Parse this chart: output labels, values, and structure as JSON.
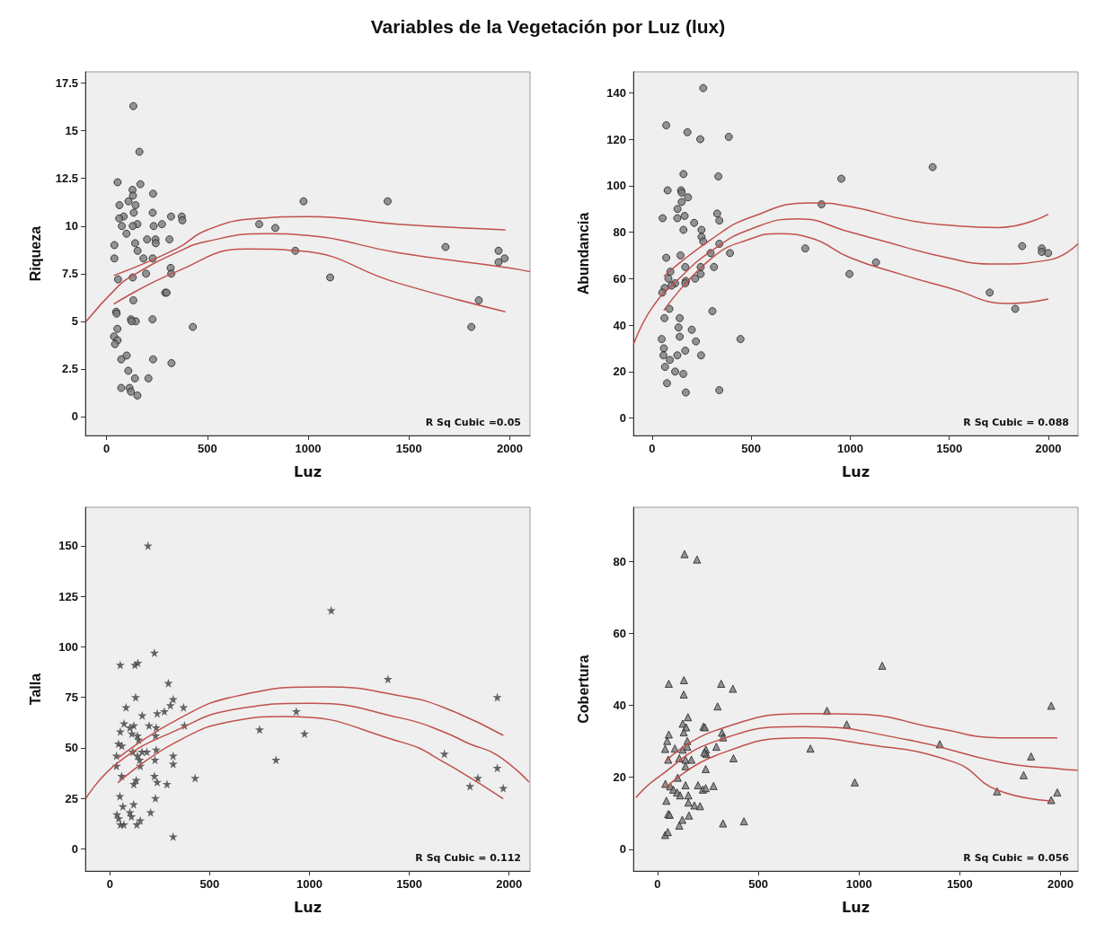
{
  "chart_data": [
    {
      "type": "scatter",
      "title": "Variables de la Vegetación por Luz (lux)",
      "xlabel": "Luz",
      "ylabel": "Riqueza",
      "marker": "circle",
      "grid": false,
      "xlim": [
        -105,
        2100
      ],
      "xticks": [
        0,
        500,
        1000,
        1500,
        2000
      ],
      "ylim": [
        -1,
        18.1
      ],
      "yticks": [
        0,
        2.5,
        5,
        7.5,
        10,
        12.5,
        15,
        17.5
      ],
      "annotations": [
        "R Sq Cubic =0.05"
      ],
      "series": [
        {
          "color": "#7a7a7a",
          "x": [
            133,
            163,
            55,
            168,
            129,
            231,
            109,
            131,
            64,
            144,
            135,
            229,
            85,
            63,
            320,
            373,
            376,
            153,
            130,
            76,
            234,
            275,
            99,
            201,
            243,
            312,
            244,
            142,
            39,
            154,
            39,
            183,
            229,
            757,
            837,
            977,
            1394,
            936,
            1109,
            318,
            321,
            196,
            130,
            57,
            291,
            298,
            133,
            48,
            50,
            121,
            145,
            124,
            228,
            428,
            54,
            37,
            55,
            42,
            100,
            73,
            231,
            322,
            108,
            141,
            208,
            73,
            114,
            121,
            153,
            1681,
            1944,
            1944,
            1974,
            1846,
            1809
          ],
          "values": [
            16.3,
            13.9,
            12.3,
            12.2,
            11.9,
            11.7,
            11.3,
            11.6,
            11.1,
            11.1,
            10.7,
            10.7,
            10.5,
            10.4,
            10.5,
            10.5,
            10.3,
            10.1,
            10.0,
            10.0,
            10.0,
            10.1,
            9.6,
            9.3,
            9.3,
            9.3,
            9.1,
            9.1,
            9.0,
            8.7,
            8.3,
            8.3,
            8.3,
            10.1,
            9.9,
            11.3,
            11.3,
            8.7,
            7.3,
            7.8,
            7.5,
            7.5,
            7.3,
            7.2,
            6.5,
            6.5,
            6.1,
            5.5,
            5.4,
            5.1,
            5.0,
            5.0,
            5.1,
            4.7,
            4.6,
            4.2,
            4.0,
            3.8,
            3.2,
            3.0,
            3.0,
            2.8,
            2.4,
            2.0,
            2.0,
            1.5,
            1.5,
            1.3,
            1.1,
            8.9,
            8.7,
            8.1,
            8.3,
            6.1,
            4.7
          ]
        },
        {
          "type": "line",
          "marker": "none",
          "color": "#c0504d",
          "x": [
            36,
            346,
            500,
            750,
            1000,
            1447,
            1978
          ],
          "values": [
            7.4,
            8.8,
            9.8,
            10.4,
            10.5,
            10.1,
            9.8
          ]
        },
        {
          "type": "line",
          "marker": "none",
          "color": "#c0504d",
          "x": [
            -100,
            54,
            130,
            346,
            500,
            795,
            1000,
            1447,
            2000,
            2100
          ],
          "values": [
            5.0,
            6.8,
            7.4,
            8.6,
            9.2,
            9.6,
            9.5,
            8.6,
            7.8,
            7.6
          ]
        },
        {
          "type": "line",
          "marker": "none",
          "color": "#c0504d",
          "x": [
            36,
            346,
            700,
            950,
            1447,
            1978
          ],
          "values": [
            5.9,
            7.6,
            8.8,
            8.7,
            7.0,
            5.5
          ]
        }
      ]
    },
    {
      "type": "scatter",
      "xlabel": "Luz",
      "ylabel": "Abundancia",
      "marker": "circle",
      "grid": false,
      "xlim": [
        -95,
        2150
      ],
      "xticks": [
        0,
        500,
        1000,
        1500,
        2000
      ],
      "ylim": [
        -7.5,
        149
      ],
      "yticks": [
        0,
        20,
        40,
        60,
        80,
        100,
        120,
        140
      ],
      "annotations": [
        "R Sq Cubic = 0.088"
      ],
      "series": [
        {
          "color": "#7a7a7a",
          "x": [
            258,
            71,
            178,
            243,
            387,
            158,
            334,
            78,
            146,
            149,
            181,
            149,
            128,
            164,
            127,
            53,
            328,
            339,
            212,
            158,
            249,
            249,
            258,
            339,
            295,
            393,
            71,
            143,
            167,
            245,
            312,
            92,
            245,
            217,
            170,
            167,
            116,
            82,
            98,
            63,
            51,
            87,
            62,
            139,
            304,
            133,
            200,
            139,
            446,
            221,
            48,
            59,
            57,
            89,
            127,
            167,
            247,
            65,
            116,
            157,
            75,
            170,
            339,
            773,
            855,
            955,
            996,
            1130,
            1416,
            1704,
            1833,
            1868,
            1967,
            1967,
            1999
          ],
          "values": [
            142,
            126,
            123,
            120,
            121,
            105,
            104,
            98,
            98,
            97,
            95,
            93,
            90,
            87,
            86,
            86,
            88,
            85,
            84,
            81,
            81,
            78,
            76,
            75,
            71,
            71,
            69,
            70,
            65,
            65,
            65,
            63,
            62,
            60,
            59,
            58,
            58,
            60,
            57,
            56,
            54,
            47,
            43,
            43,
            46,
            39,
            38,
            35,
            34,
            33,
            34,
            30,
            27,
            25,
            27,
            29,
            27,
            22,
            20,
            19,
            15,
            11,
            12,
            73,
            92,
            103,
            62,
            67,
            108,
            54,
            47,
            74,
            73,
            71.5,
            71
          ]
        },
        {
          "type": "line",
          "marker": "none",
          "color": "#c0504d",
          "x": [
            59,
            300,
            500,
            804,
            1000,
            1300,
            1500,
            1750,
            2000
          ],
          "values": [
            61,
            77,
            86.5,
            92.6,
            91,
            85,
            83,
            82,
            87.7
          ]
        },
        {
          "type": "line",
          "marker": "none",
          "color": "#c0504d",
          "x": [
            -95,
            0,
            136,
            300,
            500,
            737,
            1000,
            1130,
            1500,
            1730,
            2000,
            2150
          ],
          "values": [
            31.5,
            47.5,
            60,
            72,
            81.4,
            85.7,
            80,
            77,
            68.8,
            66.3,
            68,
            75
          ]
        },
        {
          "type": "line",
          "marker": "none",
          "color": "#c0504d",
          "x": [
            59,
            300,
            500,
            643,
            800,
            1000,
            1250,
            1500,
            1800,
            2000
          ],
          "values": [
            46.3,
            68.8,
            77.2,
            79.3,
            77.5,
            69,
            62,
            56,
            49.3,
            51.2
          ]
        }
      ]
    },
    {
      "type": "scatter",
      "xlabel": "Luz",
      "ylabel": "Talla",
      "marker": "star",
      "grid": false,
      "xlim": [
        -123,
        2105
      ],
      "xticks": [
        0,
        500,
        1000,
        1500,
        2000
      ],
      "ylim": [
        -11,
        169
      ],
      "yticks": [
        0,
        25,
        50,
        75,
        100,
        125,
        150
      ],
      "annotations": [
        "R Sq Cubic = 0.112"
      ],
      "series": [
        {
          "color": "#404040",
          "x": [
            191,
            1109,
            223,
            1393,
            52,
            125,
            140,
            293,
            129,
            317,
            81,
            303,
            369,
            237,
            273,
            162,
            934,
            71,
            196,
            232,
            374,
            120,
            100,
            52,
            110,
            138,
            144,
            229,
            750,
            975,
            43,
            60,
            115,
            161,
            185,
            232,
            33,
            138,
            149,
            226,
            317,
            317,
            33,
            152,
            832,
            59,
            427,
            223,
            237,
            286,
            132,
            120,
            50,
            228,
            65,
            119,
            35,
            100,
            204,
            108,
            44,
            152,
            53,
            135,
            70,
            317,
            1676,
            1941,
            1941,
            1844,
            1804,
            1971
          ],
          "values": [
            150,
            118,
            97,
            84,
            91,
            91,
            92,
            82,
            75,
            74,
            70,
            71,
            70,
            67,
            68,
            66,
            68,
            62,
            61,
            60,
            61,
            61,
            60,
            58,
            57,
            56,
            54,
            56,
            59,
            57,
            52,
            51,
            48,
            48,
            48,
            49,
            46,
            46,
            44,
            44,
            46,
            42,
            41,
            41,
            44,
            36,
            35,
            36,
            33,
            32,
            34,
            32,
            26,
            25,
            21,
            22,
            17,
            18,
            18,
            16,
            15,
            14,
            12,
            12,
            12,
            6,
            47,
            75,
            40,
            35,
            31,
            30
          ]
        },
        {
          "type": "line",
          "marker": "none",
          "color": "#c0504d",
          "x": [
            40,
            328,
            632,
            1072,
            1467,
            1676,
            1971
          ],
          "values": [
            44.8,
            63.4,
            75.5,
            80.1,
            75.5,
            69.8,
            56.1
          ]
        },
        {
          "type": "line",
          "marker": "none",
          "color": "#c0504d",
          "x": [
            -120,
            40,
            328,
            632,
            1011,
            1467,
            1676,
            1800,
            1941,
            2100
          ],
          "values": [
            25,
            42.6,
            58.4,
            69.1,
            72,
            64.5,
            57.7,
            52,
            46.3,
            33
          ]
        },
        {
          "type": "line",
          "marker": "none",
          "color": "#c0504d",
          "x": [
            40,
            328,
            632,
            875,
            1467,
            1676,
            1971
          ],
          "values": [
            32.6,
            52.6,
            63.4,
            65.5,
            52.6,
            42.7,
            24.7
          ]
        }
      ]
    },
    {
      "type": "scatter",
      "xlabel": "Luz",
      "ylabel": "Cobertura",
      "marker": "triangle",
      "grid": false,
      "xlim": [
        -120,
        2087
      ],
      "xticks": [
        0,
        500,
        1000,
        1500,
        2000
      ],
      "ylim": [
        -6,
        95
      ],
      "yticks": [
        0,
        20,
        40,
        60,
        80
      ],
      "annotations": [
        "R Sq Cubic = 0.056"
      ],
      "series": [
        {
          "color": "#7a7a7a",
          "x": [
            134,
            196,
            1115,
            56,
            131,
            130,
            316,
            374,
            298,
            841,
            939,
            151,
            125,
            142,
            228,
            235,
            320,
            325,
            56,
            130,
            148,
            48,
            38,
            86,
            125,
            148,
            240,
            292,
            242,
            232,
            759,
            53,
            108,
            139,
            168,
            377,
            139,
            100,
            239,
            39,
            63,
            78,
            97,
            112,
            139,
            201,
            225,
            239,
            278,
            979,
            153,
            153,
            183,
            211,
            44,
            53,
            60,
            156,
            123,
            108,
            325,
            429,
            38,
            51,
            1401,
            1685,
            1817,
            1854,
            1954,
            1954,
            1984
          ],
          "values": [
            82,
            80.5,
            51,
            46,
            47,
            43,
            46,
            44.6,
            39.7,
            38.5,
            34.7,
            36.7,
            34.9,
            33.9,
            34.1,
            33.9,
            32.4,
            31.1,
            31.9,
            32.5,
            30.1,
            30.1,
            27.9,
            28,
            27.7,
            28.5,
            27.7,
            28.5,
            26.5,
            26.9,
            28,
            24.9,
            25.3,
            24.9,
            24.9,
            25.3,
            23.1,
            19.9,
            22.3,
            18.2,
            17.5,
            16.6,
            15.8,
            15,
            17.8,
            17.8,
            16.6,
            17,
            17.6,
            18.6,
            15,
            13,
            12.2,
            12,
            13.5,
            9.8,
            9.6,
            9.4,
            8.2,
            6.6,
            7.2,
            7.8,
            4,
            4.8,
            29.2,
            16.1,
            20.6,
            25.8,
            39.9,
            13.7,
            15.8
          ]
        },
        {
          "type": "line",
          "marker": "none",
          "color": "#c0504d",
          "x": [
            40,
            286,
            750,
            1000,
            1400,
            1700,
            1984
          ],
          "values": [
            24.5,
            33,
            37.7,
            37.5,
            33.5,
            31,
            31
          ]
        },
        {
          "type": "line",
          "marker": "none",
          "color": "#c0504d",
          "x": [
            -107,
            0,
            286,
            720,
            1245,
            1702,
            2023,
            2085
          ],
          "values": [
            14.4,
            19.9,
            30,
            34.1,
            30.4,
            24.2,
            22.2,
            22
          ]
        },
        {
          "type": "line",
          "marker": "none",
          "color": "#c0504d",
          "x": [
            40,
            286,
            720,
            1000,
            1473,
            1685,
            1954
          ],
          "values": [
            17,
            26,
            31,
            29.5,
            24.2,
            16.5,
            13.5
          ]
        }
      ]
    }
  ]
}
